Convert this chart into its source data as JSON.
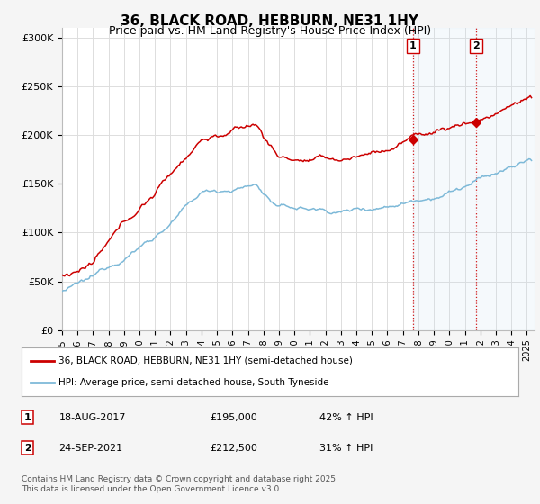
{
  "title": "36, BLACK ROAD, HEBBURN, NE31 1HY",
  "subtitle": "Price paid vs. HM Land Registry's House Price Index (HPI)",
  "ylabel_ticks": [
    "£0",
    "£50K",
    "£100K",
    "£150K",
    "£200K",
    "£250K",
    "£300K"
  ],
  "ytick_values": [
    0,
    50000,
    100000,
    150000,
    200000,
    250000,
    300000
  ],
  "ylim": [
    0,
    310000
  ],
  "xlim_start": 1995.0,
  "xlim_end": 2025.5,
  "sale1_date": 2017.63,
  "sale1_price": 195000,
  "sale2_date": 2021.73,
  "sale2_price": 212500,
  "sale1_text": "18-AUG-2017",
  "sale1_price_str": "£195,000",
  "sale1_hpi": "42% ↑ HPI",
  "sale2_text": "24-SEP-2021",
  "sale2_price_str": "£212,500",
  "sale2_hpi": "31% ↑ HPI",
  "legend_line1": "36, BLACK ROAD, HEBBURN, NE31 1HY (semi-detached house)",
  "legend_line2": "HPI: Average price, semi-detached house, South Tyneside",
  "footnote": "Contains HM Land Registry data © Crown copyright and database right 2025.\nThis data is licensed under the Open Government Licence v3.0.",
  "line_color_red": "#cc0000",
  "line_color_blue": "#7db9d8",
  "vline_color": "#cc0000",
  "shade_color": "#c8dff0",
  "grid_color": "#dddddd",
  "bg_color": "#f5f5f5",
  "plot_bg": "#ffffff",
  "title_fontsize": 11,
  "subtitle_fontsize": 9
}
